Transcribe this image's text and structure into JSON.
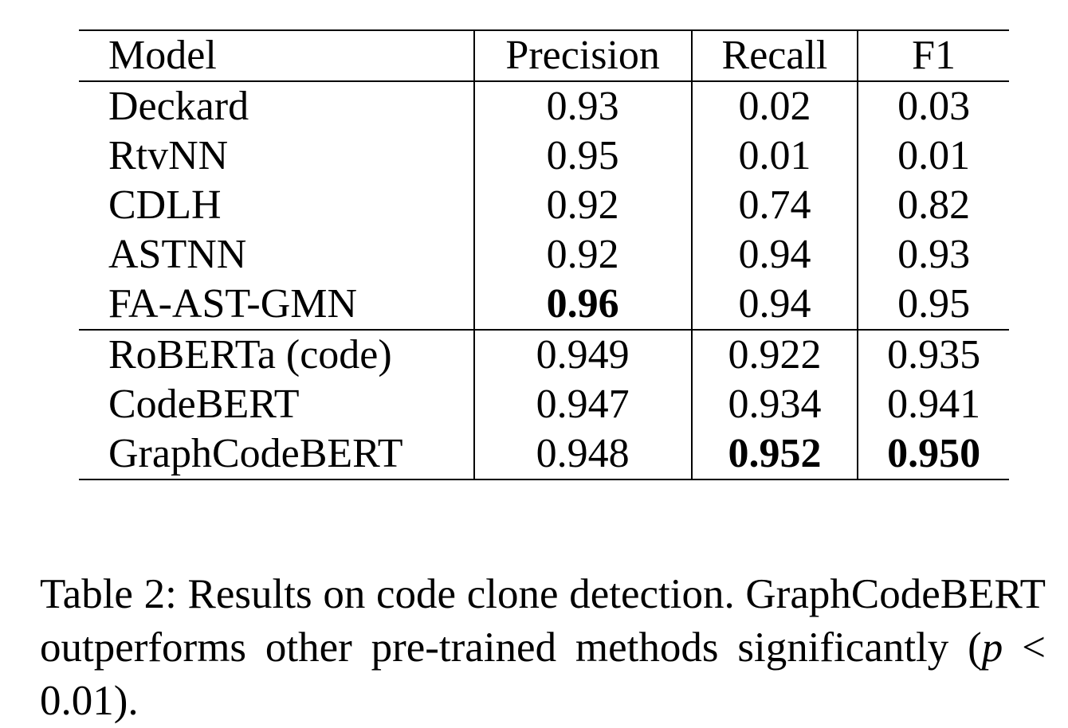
{
  "table": {
    "headers": {
      "model": "Model",
      "precision": "Precision",
      "recall": "Recall",
      "f1": "F1"
    },
    "rows": [
      {
        "model": "Deckard",
        "precision": "0.93",
        "recall": "0.02",
        "f1": "0.03"
      },
      {
        "model": "RtvNN",
        "precision": "0.95",
        "recall": "0.01",
        "f1": "0.01"
      },
      {
        "model": "CDLH",
        "precision": "0.92",
        "recall": "0.74",
        "f1": "0.82"
      },
      {
        "model": "ASTNN",
        "precision": "0.92",
        "recall": "0.94",
        "f1": "0.93"
      },
      {
        "model": "FA-AST-GMN",
        "precision": "0.96",
        "recall": "0.94",
        "f1": "0.95"
      },
      {
        "model": "RoBERTa (code)",
        "precision": "0.949",
        "recall": "0.922",
        "f1": "0.935"
      },
      {
        "model": "CodeBERT",
        "precision": "0.947",
        "recall": "0.934",
        "f1": "0.941"
      },
      {
        "model": "GraphCodeBERT",
        "precision": "0.948",
        "recall": "0.952",
        "f1": "0.950"
      }
    ],
    "bold_cells": [
      "FA-AST-GMN precision",
      "GraphCodeBERT recall",
      "GraphCodeBERT f1"
    ]
  },
  "caption": {
    "text_before": "Table 2: Results on code clone detection. GraphCodeBERT outperforms other pre-trained methods significantly (",
    "math_var": "p",
    "math_rest": " < 0.01",
    "text_after": ")."
  }
}
